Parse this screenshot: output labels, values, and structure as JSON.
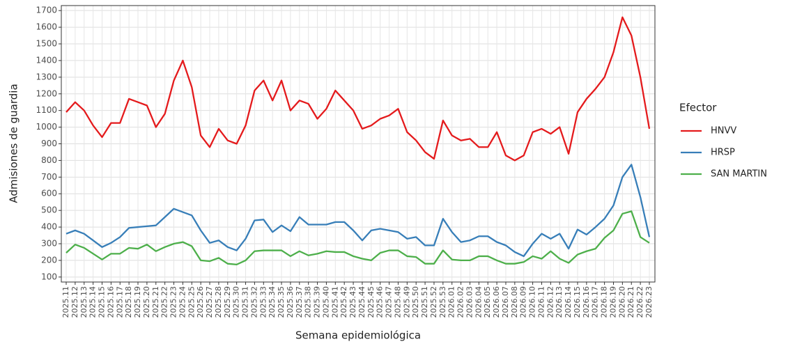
{
  "chart_data": {
    "type": "line",
    "x_label": "Semana epidemiológica",
    "y_label": "Admisiones de guardia",
    "legend_title": "Efector",
    "legend_position": "right",
    "grid": true,
    "ylim": [
      70,
      1730
    ],
    "yticks": [
      100,
      200,
      300,
      400,
      500,
      600,
      700,
      800,
      900,
      1000,
      1100,
      1200,
      1300,
      1400,
      1500,
      1600,
      1700
    ],
    "categories": [
      "2025.11",
      "2025.12",
      "2025.13",
      "2025.14",
      "2025.15",
      "2025.16",
      "2025.17",
      "2025.18",
      "2025.19",
      "2025.20",
      "2025.21",
      "2025.22",
      "2025.23",
      "2025.24",
      "2025.25",
      "2025.26",
      "2025.27",
      "2025.28",
      "2025.29",
      "2025.30",
      "2025.31",
      "2025.32",
      "2025.33",
      "2025.34",
      "2025.35",
      "2025.36",
      "2025.37",
      "2025.38",
      "2025.39",
      "2025.40",
      "2025.41",
      "2025.42",
      "2025.43",
      "2025.44",
      "2025.45",
      "2025.46",
      "2025.47",
      "2025.48",
      "2025.49",
      "2025.50",
      "2025.51",
      "2025.52",
      "2025.53",
      "2026.01",
      "2026.02",
      "2026.03",
      "2026.04",
      "2026.05",
      "2026.06",
      "2026.07",
      "2026.08",
      "2026.09",
      "2026.10",
      "2026.11",
      "2026.12",
      "2026.13",
      "2026.14",
      "2026.15",
      "2026.16",
      "2026.17",
      "2026.18",
      "2026.19",
      "2026.20",
      "2026.21",
      "2026.22",
      "2026.23"
    ],
    "series": [
      {
        "name": "HNVV",
        "color": "#e41a1c",
        "values": [
          1090,
          1150,
          1100,
          1010,
          940,
          1025,
          1025,
          1170,
          1150,
          1130,
          1000,
          1080,
          1280,
          1400,
          1240,
          950,
          880,
          990,
          920,
          900,
          1010,
          1220,
          1280,
          1160,
          1280,
          1100,
          1160,
          1140,
          1050,
          1110,
          1220,
          1160,
          1100,
          990,
          1010,
          1050,
          1070,
          1110,
          970,
          920,
          850,
          810,
          1040,
          950,
          920,
          930,
          880,
          880,
          970,
          830,
          800,
          830,
          970,
          990,
          960,
          1000,
          840,
          1090,
          1170,
          1230,
          1300,
          1450,
          1660,
          1550,
          1300,
          990
        ]
      },
      {
        "name": "HRSP",
        "color": "#377eb8",
        "values": [
          360,
          380,
          360,
          320,
          280,
          305,
          340,
          395,
          400,
          405,
          410,
          460,
          510,
          490,
          470,
          380,
          305,
          320,
          280,
          260,
          330,
          440,
          445,
          370,
          410,
          375,
          460,
          415,
          415,
          415,
          430,
          430,
          380,
          320,
          380,
          390,
          380,
          370,
          330,
          340,
          290,
          290,
          450,
          370,
          310,
          320,
          345,
          345,
          310,
          290,
          250,
          225,
          300,
          360,
          330,
          360,
          270,
          385,
          355,
          400,
          450,
          530,
          700,
          775,
          580,
          340
        ]
      },
      {
        "name": "SAN MARTIN",
        "color": "#4daf4a",
        "values": [
          245,
          295,
          275,
          240,
          205,
          240,
          240,
          275,
          270,
          295,
          255,
          280,
          300,
          310,
          285,
          200,
          195,
          215,
          180,
          175,
          200,
          255,
          260,
          260,
          260,
          225,
          255,
          230,
          240,
          255,
          250,
          250,
          225,
          210,
          200,
          245,
          260,
          260,
          225,
          220,
          180,
          180,
          260,
          205,
          200,
          200,
          225,
          225,
          200,
          180,
          180,
          190,
          225,
          210,
          255,
          210,
          185,
          235,
          255,
          270,
          335,
          380,
          480,
          495,
          340,
          305
        ]
      }
    ]
  }
}
